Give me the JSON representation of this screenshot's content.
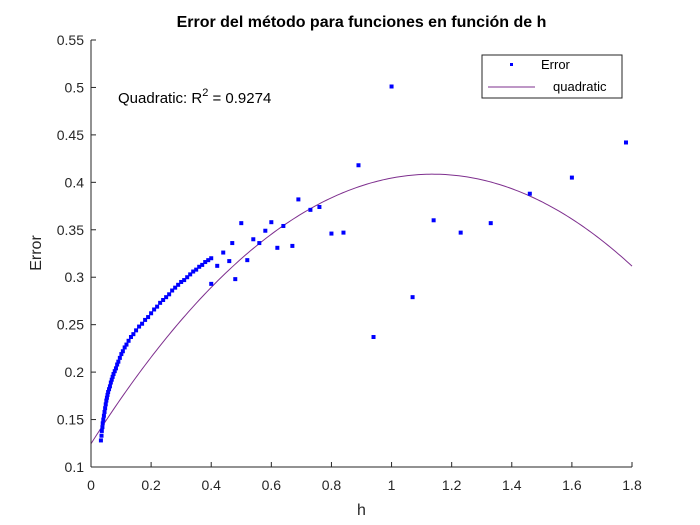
{
  "chart_data": {
    "type": "scatter",
    "title": "Error del método para funciones en función de h",
    "xlabel": "h",
    "ylabel": "Error",
    "xlim": [
      0,
      1.8
    ],
    "ylim": [
      0.1,
      0.55
    ],
    "xticks": [
      "0",
      "0.2",
      "0.4",
      "0.6",
      "0.8",
      "1",
      "1.2",
      "1.4",
      "1.6",
      "1.8"
    ],
    "yticks": [
      "0.1",
      "0.15",
      "0.2",
      "0.25",
      "0.3",
      "0.35",
      "0.4",
      "0.45",
      "0.5",
      "0.55"
    ],
    "grid": false,
    "legend_position": "top-right",
    "annotation": {
      "prefix": "Quadratic: R",
      "superscript": "2",
      "suffix": " = 0.9274"
    },
    "colors": {
      "scatter": "#0000ff",
      "fit": "#7e2f8e",
      "axes": "#262626"
    },
    "series": [
      {
        "name": "Error",
        "kind": "scatter",
        "points": [
          [
            0.033,
            0.128
          ],
          [
            0.035,
            0.133
          ],
          [
            0.036,
            0.138
          ],
          [
            0.038,
            0.142
          ],
          [
            0.039,
            0.146
          ],
          [
            0.041,
            0.15
          ],
          [
            0.043,
            0.154
          ],
          [
            0.045,
            0.158
          ],
          [
            0.047,
            0.162
          ],
          [
            0.049,
            0.166
          ],
          [
            0.051,
            0.17
          ],
          [
            0.053,
            0.173
          ],
          [
            0.055,
            0.176
          ],
          [
            0.057,
            0.179
          ],
          [
            0.06,
            0.182
          ],
          [
            0.063,
            0.185
          ],
          [
            0.066,
            0.189
          ],
          [
            0.069,
            0.192
          ],
          [
            0.072,
            0.195
          ],
          [
            0.075,
            0.198
          ],
          [
            0.079,
            0.201
          ],
          [
            0.083,
            0.204
          ],
          [
            0.087,
            0.208
          ],
          [
            0.091,
            0.211
          ],
          [
            0.096,
            0.215
          ],
          [
            0.101,
            0.219
          ],
          [
            0.106,
            0.222
          ],
          [
            0.112,
            0.226
          ],
          [
            0.118,
            0.229
          ],
          [
            0.125,
            0.233
          ],
          [
            0.133,
            0.237
          ],
          [
            0.141,
            0.24
          ],
          [
            0.15,
            0.244
          ],
          [
            0.16,
            0.248
          ],
          [
            0.17,
            0.251
          ],
          [
            0.18,
            0.255
          ],
          [
            0.19,
            0.258
          ],
          [
            0.2,
            0.262
          ],
          [
            0.21,
            0.266
          ],
          [
            0.22,
            0.269
          ],
          [
            0.23,
            0.273
          ],
          [
            0.24,
            0.276
          ],
          [
            0.25,
            0.279
          ],
          [
            0.26,
            0.282
          ],
          [
            0.27,
            0.286
          ],
          [
            0.28,
            0.289
          ],
          [
            0.29,
            0.292
          ],
          [
            0.3,
            0.295
          ],
          [
            0.31,
            0.297
          ],
          [
            0.32,
            0.3
          ],
          [
            0.33,
            0.303
          ],
          [
            0.34,
            0.306
          ],
          [
            0.35,
            0.308
          ],
          [
            0.36,
            0.311
          ],
          [
            0.37,
            0.313
          ],
          [
            0.38,
            0.316
          ],
          [
            0.39,
            0.318
          ],
          [
            0.4,
            0.32
          ],
          [
            0.4,
            0.293
          ],
          [
            0.42,
            0.312
          ],
          [
            0.44,
            0.326
          ],
          [
            0.46,
            0.317
          ],
          [
            0.47,
            0.336
          ],
          [
            0.48,
            0.298
          ],
          [
            0.5,
            0.357
          ],
          [
            0.52,
            0.318
          ],
          [
            0.54,
            0.34
          ],
          [
            0.56,
            0.336
          ],
          [
            0.58,
            0.349
          ],
          [
            0.6,
            0.358
          ],
          [
            0.62,
            0.331
          ],
          [
            0.64,
            0.354
          ],
          [
            0.67,
            0.333
          ],
          [
            0.69,
            0.382
          ],
          [
            0.73,
            0.371
          ],
          [
            0.76,
            0.374
          ],
          [
            0.8,
            0.346
          ],
          [
            0.84,
            0.347
          ],
          [
            0.89,
            0.418
          ],
          [
            0.94,
            0.237
          ],
          [
            1.0,
            0.501
          ],
          [
            1.07,
            0.279
          ],
          [
            1.14,
            0.36
          ],
          [
            1.23,
            0.347
          ],
          [
            1.33,
            0.357
          ],
          [
            1.46,
            0.388
          ],
          [
            1.6,
            0.405
          ],
          [
            1.78,
            0.442
          ]
        ]
      },
      {
        "name": "quadratic",
        "kind": "line",
        "coefficients": {
          "a": -0.22,
          "b": 0.5,
          "c": 0.1245
        },
        "x_range": [
          0,
          1.8
        ]
      }
    ]
  }
}
